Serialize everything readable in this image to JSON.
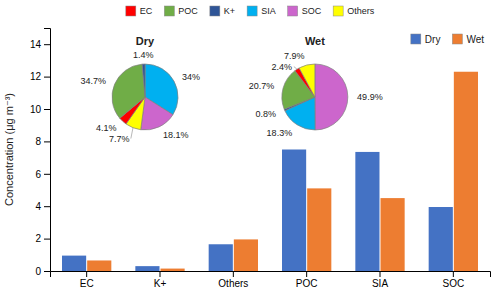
{
  "chart_data": [
    {
      "type": "bar",
      "categories": [
        "EC",
        "K+",
        "Others",
        "POC",
        "SIA",
        "SOC"
      ],
      "series": [
        {
          "name": "Dry",
          "color": "#4472C4",
          "values": [
            0.95,
            0.3,
            1.65,
            7.5,
            7.35,
            3.95
          ]
        },
        {
          "name": "Wet",
          "color": "#ED7D31",
          "values": [
            0.65,
            0.15,
            1.95,
            5.1,
            4.5,
            12.3
          ]
        }
      ],
      "ylabel": "Concentration (μg m⁻³)",
      "ylim": [
        0,
        15
      ],
      "yticks": [
        0,
        2,
        4,
        6,
        8,
        10,
        12,
        14
      ],
      "legend": "upper right",
      "grid": false
    },
    {
      "type": "pie",
      "title": "Dry",
      "values": [
        34.0,
        18.1,
        7.7,
        4.1,
        34.7,
        1.4
      ],
      "value_labels": [
        "34%",
        "18.1%",
        "7.7%",
        "4.1%",
        "34.7%",
        "1.4%"
      ],
      "colors": [
        "#00B0F0",
        "#CC66CC",
        "#FFFF00",
        "#FF0000",
        "#70AD47",
        "#2F5597"
      ],
      "data_labels": true
    },
    {
      "type": "pie",
      "title": "Wet",
      "values": [
        49.9,
        18.3,
        0.8,
        20.7,
        2.4,
        7.9
      ],
      "value_labels": [
        "49.9%",
        "18.3%",
        "0.8%",
        "20.7%",
        "2.4%",
        "7.9%"
      ],
      "colors": [
        "#CC66CC",
        "#00B0F0",
        "#2F5597",
        "#70AD47",
        "#FF0000",
        "#FFFF00"
      ],
      "data_labels": true
    },
    {
      "type": "legend",
      "legend": "upper center",
      "series": [
        {
          "name": "EC",
          "color": "#FF0000"
        },
        {
          "name": "POC",
          "color": "#70AD47"
        },
        {
          "name": "K+",
          "color": "#2F5597"
        },
        {
          "name": "SIA",
          "color": "#00B0F0"
        },
        {
          "name": "SOC",
          "color": "#CC66CC"
        },
        {
          "name": "Others",
          "color": "#FFFF00"
        }
      ]
    }
  ]
}
